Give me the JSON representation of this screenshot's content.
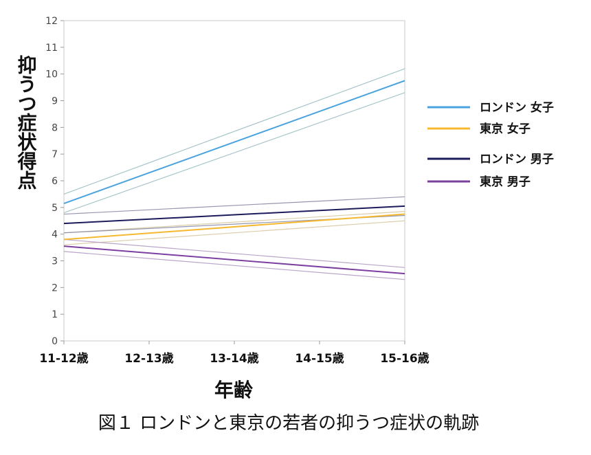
{
  "chart_data": {
    "type": "line",
    "ylabel": "抑うつ症状得点",
    "xlabel": "年齢",
    "categories": [
      "11-12歳",
      "12-13歳",
      "13-14歳",
      "14-15歳",
      "15-16歳"
    ],
    "ylim": [
      0,
      12
    ],
    "yticks": [
      0,
      1,
      2,
      3,
      4,
      5,
      6,
      7,
      8,
      9,
      10,
      11,
      12
    ],
    "grid": false,
    "legend_position": "right",
    "series": [
      {
        "name": "ロンドン 女子",
        "color": "#4aa3df",
        "ci_color": "#9dbfc4",
        "start": 5.15,
        "end": 9.75,
        "lower": [
          4.8,
          9.3
        ],
        "upper": [
          5.5,
          10.2
        ]
      },
      {
        "name": "東京 女子",
        "color": "#f5b82e",
        "ci_color": "#d8c8a0",
        "start": 3.8,
        "end": 4.75,
        "lower": [
          3.6,
          4.5
        ],
        "upper": [
          4.05,
          4.85
        ]
      },
      {
        "name": "ロンドン 男子",
        "color": "#1b1b5c",
        "ci_color": "#8a8aa6",
        "start": 4.4,
        "end": 5.05,
        "lower": [
          4.05,
          4.7
        ],
        "upper": [
          4.75,
          5.4
        ]
      },
      {
        "name": "東京 男子",
        "color": "#7b3fa0",
        "ci_color": "#b39bc4",
        "start": 3.55,
        "end": 2.52,
        "lower": [
          3.35,
          2.3
        ],
        "upper": [
          3.8,
          2.75
        ]
      }
    ]
  },
  "caption": "図１ ロンドンと東京の若者の抑うつ症状の軌跡"
}
